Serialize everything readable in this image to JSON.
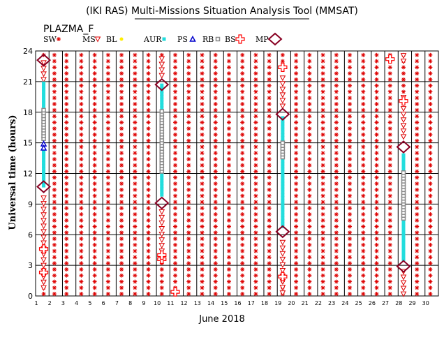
{
  "chart_data": {
    "type": "scatter",
    "title": "(IKI RAS) Multi-Missions Situation Analysis Tool (MMSAT)",
    "subtitle": "PLAZMA_F",
    "xlabel": "June 2018",
    "ylabel": "Universal time (hours)",
    "xlim": [
      1,
      31
    ],
    "ylim": [
      0,
      24
    ],
    "x_ticks": [
      "1",
      "2",
      "3",
      "4",
      "5",
      "6",
      "7",
      "8",
      "9",
      "10",
      "11",
      "12",
      "13",
      "14",
      "15",
      "16",
      "17",
      "18",
      "19",
      "20",
      "21",
      "22",
      "23",
      "24",
      "25",
      "26",
      "27",
      "28",
      "29",
      "30"
    ],
    "y_ticks": [
      "0",
      "3",
      "6",
      "9",
      "12",
      "15",
      "18",
      "21",
      "24"
    ],
    "grid": true,
    "legend_position": "top",
    "legend": [
      {
        "key": "SW",
        "label": "SW",
        "color": "#dd0000",
        "marker": "asterisk"
      },
      {
        "key": "MS",
        "label": "MS",
        "color": "#dd0000",
        "marker": "triangle-down"
      },
      {
        "key": "BL",
        "label": "BL",
        "color": "#ffee00",
        "marker": "dot"
      },
      {
        "key": "AUR",
        "label": "AUR",
        "color": "#22dddd",
        "marker": "square"
      },
      {
        "key": "PS",
        "label": "PS",
        "color": "#0000cc",
        "marker": "triangle-up"
      },
      {
        "key": "RB",
        "label": "RB",
        "color": "#888888",
        "marker": "hollow-square"
      },
      {
        "key": "BS",
        "label": "BS",
        "color": "#ff0000",
        "marker": "cross"
      },
      {
        "key": "MP",
        "label": "MP",
        "color": "#880022",
        "marker": "diamond"
      }
    ],
    "solar_wind": {
      "marker": "SW",
      "columns_x": [
        1.6,
        2.4,
        3.3,
        4.4,
        5.4,
        6.4,
        7.4,
        8.4,
        9.4,
        10.4,
        11.4,
        12.4,
        13.4,
        14.4,
        15.4,
        16.4,
        17.4,
        18.4,
        19.4,
        20.4,
        21.4,
        22.4,
        23.4,
        24.4,
        25.4,
        26.4,
        27.4,
        28.4,
        29.4,
        30.4
      ],
      "time_step_hours": 0.6,
      "gaps": [
        {
          "x": 1.6,
          "from": 2.6,
          "to": 23.5
        },
        {
          "x": 10.4,
          "from": 3.6,
          "to": 23.5
        },
        {
          "x": 19.4,
          "from": 1.5,
          "to": 22.5
        },
        {
          "x": 28.4,
          "from": 0,
          "to": 19.5
        }
      ]
    },
    "series": [
      {
        "name": "MS",
        "segments": [
          {
            "x": 1.6,
            "from": 0.8,
            "to": 10.0
          },
          {
            "x": 1.6,
            "from": 21.2,
            "to": 23.0
          },
          {
            "x": 10.4,
            "from": 4.4,
            "to": 8.6
          },
          {
            "x": 10.4,
            "from": 21.6,
            "to": 23.6
          },
          {
            "x": 19.4,
            "from": 0.3,
            "to": 5.6
          },
          {
            "x": 19.4,
            "from": 18.6,
            "to": 21.6
          },
          {
            "x": 28.4,
            "from": 0.2,
            "to": 2.4
          },
          {
            "x": 28.4,
            "from": 15.6,
            "to": 19.6
          },
          {
            "x": 28.4,
            "from": 23.0,
            "to": 23.6
          }
        ]
      },
      {
        "name": "AUR",
        "segments": [
          {
            "x": 1.6,
            "from": 10.8,
            "to": 14.3
          },
          {
            "x": 1.6,
            "from": 18.6,
            "to": 21.0
          },
          {
            "x": 10.4,
            "from": 9.9,
            "to": 12.0
          },
          {
            "x": 10.4,
            "from": 18.4,
            "to": 20.8
          },
          {
            "x": 19.4,
            "from": 6.8,
            "to": 13.5
          },
          {
            "x": 19.4,
            "from": 15.2,
            "to": 17.6
          },
          {
            "x": 28.4,
            "from": 3.6,
            "to": 7.4
          },
          {
            "x": 28.4,
            "from": 12.4,
            "to": 14.0
          }
        ]
      },
      {
        "name": "RB",
        "segments": [
          {
            "x": 1.6,
            "from": 15.4,
            "to": 18.3
          },
          {
            "x": 10.4,
            "from": 12.2,
            "to": 18.2
          },
          {
            "x": 19.4,
            "from": 13.6,
            "to": 15.0
          },
          {
            "x": 28.4,
            "from": 7.6,
            "to": 12.2
          }
        ]
      },
      {
        "name": "PS",
        "points": [
          {
            "x": 1.6,
            "y": 14.9
          },
          {
            "x": 1.6,
            "y": 14.5
          }
        ]
      },
      {
        "name": "BS",
        "points": [
          {
            "x": 1.6,
            "y": 2.3
          },
          {
            "x": 1.6,
            "y": 4.6
          },
          {
            "x": 10.4,
            "y": 3.6
          },
          {
            "x": 10.4,
            "y": 4.0
          },
          {
            "x": 11.4,
            "y": 0.4
          },
          {
            "x": 19.4,
            "y": 1.9
          },
          {
            "x": 19.4,
            "y": 22.4
          },
          {
            "x": 27.4,
            "y": 23.2
          },
          {
            "x": 28.4,
            "y": 19.1
          }
        ]
      },
      {
        "name": "MP",
        "points": [
          {
            "x": 1.6,
            "y": 10.7
          },
          {
            "x": 1.6,
            "y": 23.1
          },
          {
            "x": 10.4,
            "y": 9.1
          },
          {
            "x": 10.4,
            "y": 20.7
          },
          {
            "x": 19.4,
            "y": 6.3
          },
          {
            "x": 19.4,
            "y": 17.8
          },
          {
            "x": 28.4,
            "y": 2.9
          },
          {
            "x": 28.4,
            "y": 14.6
          }
        ]
      }
    ]
  }
}
